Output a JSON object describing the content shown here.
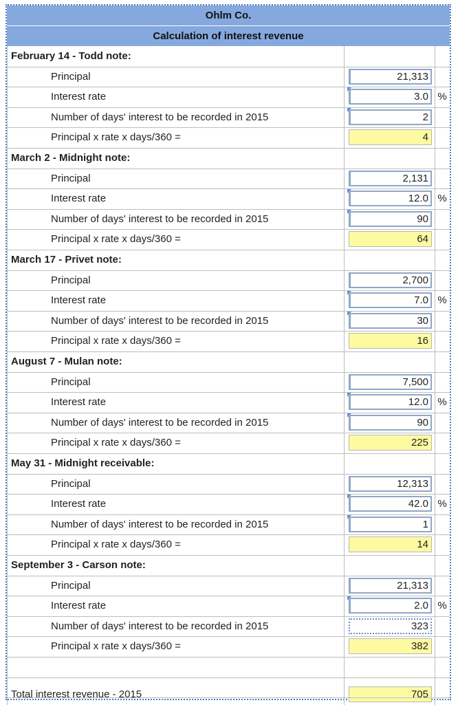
{
  "header": {
    "company": "Ohlm Co.",
    "subtitle": "Calculation of interest revenue"
  },
  "labels": {
    "principal": "Principal",
    "rate": "Interest rate",
    "days": "Number of days' interest to be recorded in 2015",
    "formula": "Principal x rate x days/360 =",
    "currency": "$",
    "percent": "%"
  },
  "sections": [
    {
      "title": "February 14 - Todd note:",
      "principal": "21,313",
      "rate": "3.0",
      "days": "2",
      "interest": "4"
    },
    {
      "title": "March 2 - Midnight note:",
      "principal": "2,131",
      "rate": "12.0",
      "days": "90",
      "interest": "64"
    },
    {
      "title": "March 17 - Privet note:",
      "principal": "2,700",
      "rate": "7.0",
      "days": "30",
      "interest": "16"
    },
    {
      "title": "August 7 - Mulan note:",
      "principal": "7,500",
      "rate": "12.0",
      "days": "90",
      "interest": "225"
    },
    {
      "title": "May 31 - Midnight receivable:",
      "principal": "12,313",
      "rate": "42.0",
      "days": "1",
      "interest": "14"
    },
    {
      "title": "September 3 - Carson note:",
      "principal": "21,313",
      "rate": "2.0",
      "days": "323",
      "interest": "382"
    }
  ],
  "total": {
    "label": "Total interest revenue - 2015",
    "value": "705"
  }
}
